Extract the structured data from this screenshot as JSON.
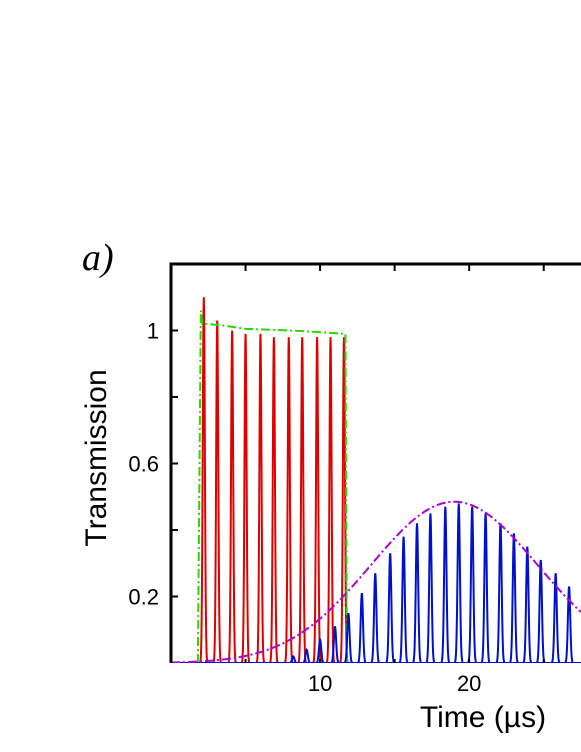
{
  "panel_label": "a)",
  "chart_data": {
    "type": "line",
    "xlabel": "Time (µs)",
    "ylabel": "Transmission",
    "xlim": [
      0,
      27.5
    ],
    "ylim": [
      0,
      1.2
    ],
    "x_ticks": [
      10,
      20
    ],
    "y_ticks": [
      0.2,
      0.6,
      1
    ],
    "x_tick_labels": [
      "10",
      "20"
    ],
    "y_tick_labels": [
      "0.2",
      "0.6",
      "1"
    ],
    "grid": false,
    "series": [
      {
        "kind": "pulses",
        "color": "#e00000",
        "width": 0.18,
        "centers": [
          2.2,
          3.1,
          4.1,
          5.0,
          6.0,
          6.9,
          7.9,
          8.8,
          9.8,
          10.7,
          11.6
        ],
        "peaks": [
          1.1,
          1.03,
          1.0,
          0.99,
          0.99,
          0.98,
          0.98,
          0.98,
          0.98,
          0.98,
          0.98
        ]
      },
      {
        "kind": "step",
        "color": "#22dd00",
        "dash": "dashdot",
        "x": [
          1.8,
          2.0,
          2.1,
          2.4,
          3.5,
          5.0,
          8.0,
          10.0,
          11.7,
          11.8,
          27.5
        ],
        "y": [
          0.0,
          1.06,
          1.02,
          1.02,
          1.015,
          1.005,
          1.0,
          0.995,
          0.99,
          0.0,
          0.0
        ]
      },
      {
        "kind": "pulses",
        "color": "#0010cc",
        "width": 0.2,
        "centers": [
          8.2,
          9.1,
          10.0,
          11.0,
          11.9,
          12.8,
          13.7,
          14.7,
          15.6,
          16.5,
          17.4,
          18.4,
          19.3,
          20.2,
          21.1,
          22.1,
          23.0,
          23.9,
          24.8,
          25.8,
          26.7
        ],
        "peaks": [
          0.02,
          0.04,
          0.07,
          0.11,
          0.15,
          0.21,
          0.27,
          0.33,
          0.38,
          0.42,
          0.45,
          0.47,
          0.48,
          0.47,
          0.45,
          0.42,
          0.39,
          0.35,
          0.31,
          0.27,
          0.23
        ]
      },
      {
        "kind": "gaussian",
        "color": "#b000d8",
        "dash": "dashdot",
        "amplitude": 0.485,
        "center": 19.0,
        "sigma": 5.6
      }
    ]
  }
}
